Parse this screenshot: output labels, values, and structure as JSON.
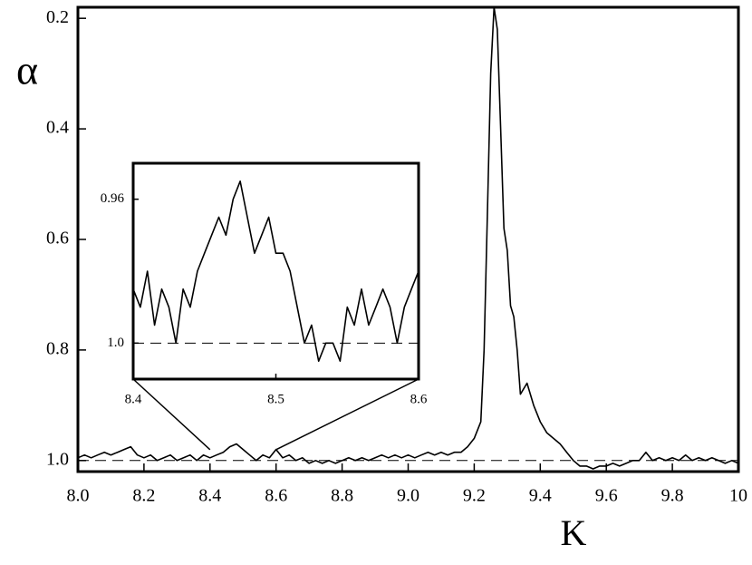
{
  "chart_data": [
    {
      "type": "line",
      "xlabel": "K",
      "ylabel": "α",
      "color": "#000000",
      "x": [
        8.0,
        8.02,
        8.04,
        8.06,
        8.08,
        8.1,
        8.12,
        8.14,
        8.16,
        8.18,
        8.2,
        8.22,
        8.24,
        8.26,
        8.28,
        8.3,
        8.32,
        8.34,
        8.36,
        8.38,
        8.4,
        8.42,
        8.44,
        8.46,
        8.48,
        8.5,
        8.52,
        8.54,
        8.56,
        8.58,
        8.6,
        8.62,
        8.64,
        8.66,
        8.68,
        8.7,
        8.72,
        8.74,
        8.76,
        8.78,
        8.8,
        8.82,
        8.84,
        8.86,
        8.88,
        8.9,
        8.92,
        8.94,
        8.96,
        8.98,
        9.0,
        9.02,
        9.04,
        9.06,
        9.08,
        9.1,
        9.12,
        9.14,
        9.16,
        9.18,
        9.2,
        9.22,
        9.23,
        9.24,
        9.25,
        9.26,
        9.27,
        9.28,
        9.29,
        9.3,
        9.31,
        9.32,
        9.33,
        9.34,
        9.36,
        9.38,
        9.4,
        9.42,
        9.44,
        9.46,
        9.48,
        9.5,
        9.52,
        9.54,
        9.56,
        9.58,
        9.6,
        9.62,
        9.64,
        9.66,
        9.68,
        9.7,
        9.72,
        9.74,
        9.76,
        9.78,
        9.8,
        9.82,
        9.84,
        9.86,
        9.88,
        9.9,
        9.92,
        9.94,
        9.96,
        9.98,
        10.0
      ],
      "values": [
        0.995,
        0.99,
        0.995,
        0.99,
        0.985,
        0.99,
        0.985,
        0.98,
        0.975,
        0.99,
        0.995,
        0.99,
        1.0,
        0.995,
        0.99,
        1.0,
        0.995,
        0.99,
        1.0,
        0.99,
        0.995,
        0.99,
        0.985,
        0.975,
        0.97,
        0.98,
        0.99,
        1.0,
        0.99,
        0.995,
        0.98,
        0.995,
        0.99,
        1.0,
        0.995,
        1.005,
        1.0,
        1.005,
        1.0,
        1.005,
        1.0,
        0.995,
        1.0,
        0.995,
        1.0,
        0.995,
        0.99,
        0.995,
        0.99,
        0.995,
        0.99,
        0.995,
        0.99,
        0.985,
        0.99,
        0.985,
        0.99,
        0.985,
        0.985,
        0.975,
        0.96,
        0.93,
        0.8,
        0.55,
        0.3,
        0.18,
        0.22,
        0.4,
        0.58,
        0.62,
        0.72,
        0.74,
        0.8,
        0.88,
        0.86,
        0.9,
        0.93,
        0.95,
        0.96,
        0.97,
        0.985,
        1.0,
        1.01,
        1.01,
        1.015,
        1.01,
        1.01,
        1.005,
        1.01,
        1.005,
        1.0,
        1.0,
        0.985,
        1.0,
        0.995,
        1.0,
        0.995,
        1.0,
        0.99,
        1.0,
        0.995,
        1.0,
        0.995,
        1.0,
        1.005,
        1.0,
        1.005
      ],
      "xlim": [
        8.0,
        10.0
      ],
      "xticks": [
        {
          "value": 8.0,
          "label": "8.0"
        },
        8.2,
        8.4,
        8.6,
        8.8,
        {
          "value": 9.0,
          "label": "9.0"
        },
        9.2,
        9.4,
        9.6,
        9.8,
        10
      ],
      "ylim": [
        0.18,
        1.02
      ],
      "y_inverted": true,
      "yticks": [
        0.2,
        0.4,
        0.6,
        0.8,
        {
          "value": 1.0,
          "label": "1.0"
        }
      ],
      "hline": 1.0
    },
    {
      "type": "line",
      "color": "#000000",
      "x": [
        8.4,
        8.405,
        8.41,
        8.415,
        8.42,
        8.425,
        8.43,
        8.435,
        8.44,
        8.445,
        8.45,
        8.455,
        8.46,
        8.465,
        8.47,
        8.475,
        8.48,
        8.485,
        8.49,
        8.495,
        8.5,
        8.505,
        8.51,
        8.515,
        8.52,
        8.525,
        8.53,
        8.535,
        8.54,
        8.545,
        8.55,
        8.555,
        8.56,
        8.565,
        8.57,
        8.575,
        8.58,
        8.585,
        8.59,
        8.595,
        8.6
      ],
      "values": [
        0.985,
        0.99,
        0.98,
        0.995,
        0.985,
        0.99,
        1.0,
        0.985,
        0.99,
        0.98,
        0.975,
        0.97,
        0.965,
        0.97,
        0.96,
        0.955,
        0.965,
        0.975,
        0.97,
        0.965,
        0.975,
        0.975,
        0.98,
        0.99,
        1.0,
        0.995,
        1.005,
        1.0,
        1.0,
        1.005,
        0.99,
        0.995,
        0.985,
        0.995,
        0.99,
        0.985,
        0.99,
        1.0,
        0.99,
        0.985,
        0.98
      ],
      "xlim": [
        8.4,
        8.6
      ],
      "xticks": [
        8.4,
        8.5,
        8.6
      ],
      "ylim": [
        0.95,
        1.01
      ],
      "y_inverted": true,
      "yticks": [
        0.96,
        {
          "value": 1.0,
          "label": "1.0"
        }
      ],
      "hline": 1.0
    }
  ]
}
